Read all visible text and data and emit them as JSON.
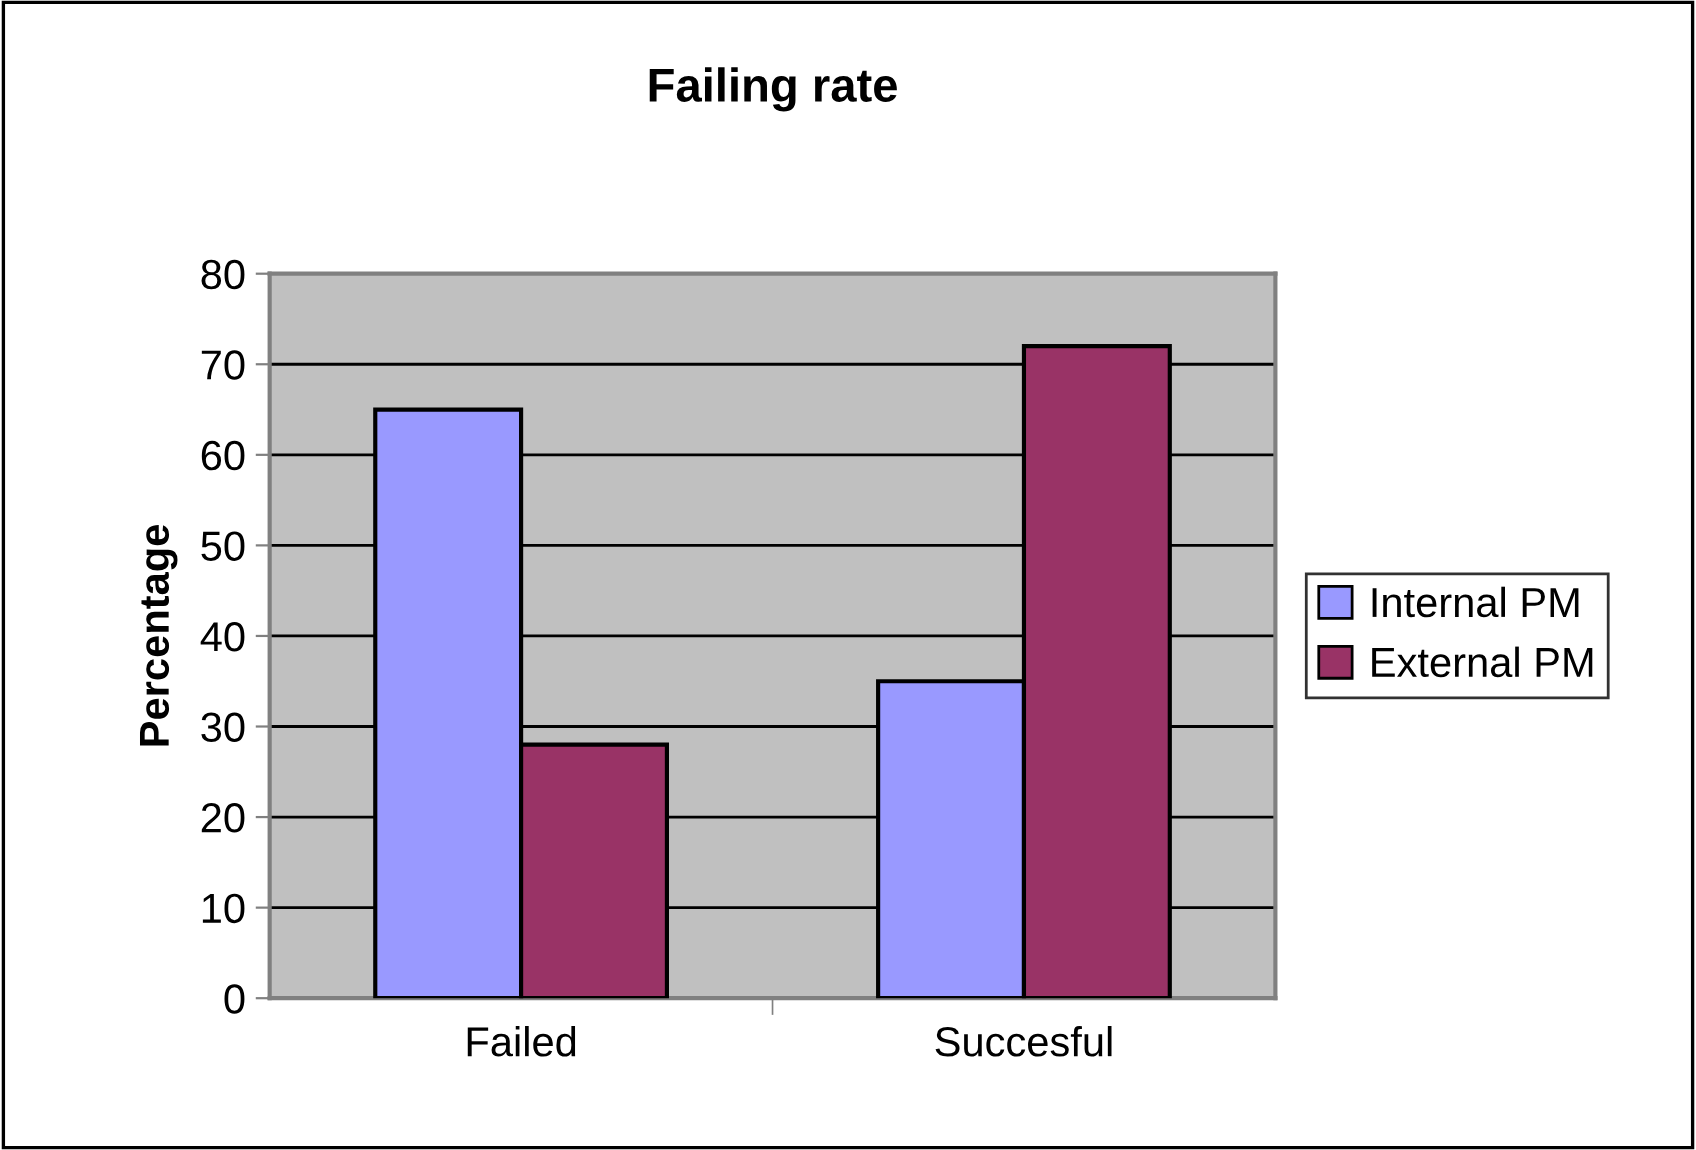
{
  "chart_data": {
    "type": "bar",
    "title": "Failing rate",
    "ylabel": "Percentage",
    "categories": [
      "Failed",
      "Succesful"
    ],
    "series": [
      {
        "name": "Internal PM",
        "color": "#9999ff",
        "values": [
          65,
          35
        ]
      },
      {
        "name": "External PM",
        "color": "#993366",
        "values": [
          28,
          72
        ]
      }
    ],
    "ylim": [
      0,
      80
    ],
    "yticks": [
      0,
      10,
      20,
      30,
      40,
      50,
      60,
      70,
      80
    ],
    "grid": "y",
    "legend": "right"
  }
}
